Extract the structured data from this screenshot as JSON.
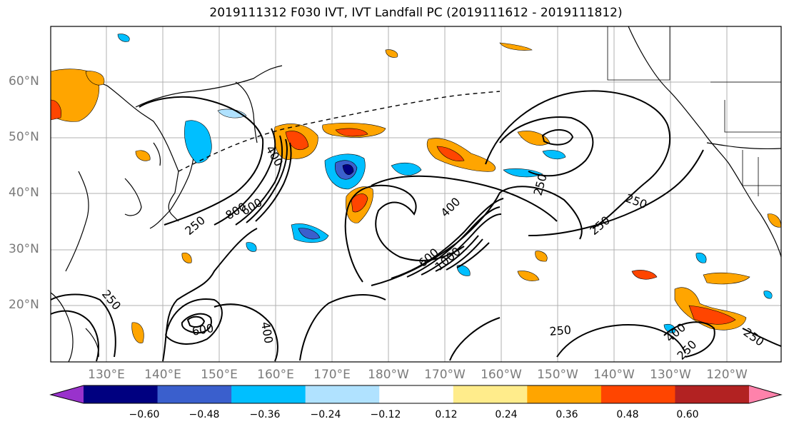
{
  "title": "2019111312 F030 IVT, IVT Landfall PC (2019111612 - 2019111812)",
  "lat_labels": [
    "60°N",
    "50°N",
    "40°N",
    "30°N",
    "20°N"
  ],
  "lon_labels": [
    "130°E",
    "140°E",
    "150°E",
    "160°E",
    "170°E",
    "180°W",
    "170°W",
    "160°W",
    "150°W",
    "140°W",
    "130°W",
    "120°W"
  ],
  "contour_labels": [
    "400",
    "250",
    "800",
    "600",
    "250",
    "400",
    "600",
    "1000",
    "250",
    "250",
    "250",
    "250",
    "600",
    "400",
    "250",
    "250",
    "400"
  ],
  "colorbar": {
    "ticks": [
      "−0.60",
      "−0.48",
      "−0.36",
      "−0.24",
      "−0.12",
      "0.12",
      "0.24",
      "0.36",
      "0.48",
      "0.60"
    ],
    "colors": [
      "#9932cc",
      "#000080",
      "#3a5fcd",
      "#00bfff",
      "#b0e2ff",
      "#ffffff",
      "#ffec8b",
      "#ffa500",
      "#ff4500",
      "#b22222",
      "#ff82ab"
    ]
  }
}
